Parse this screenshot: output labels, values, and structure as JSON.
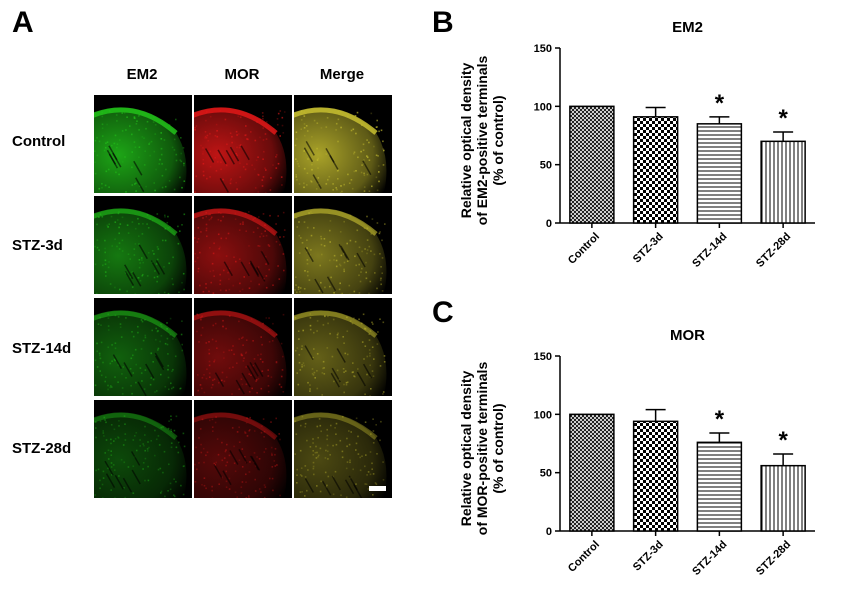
{
  "panels": {
    "A": {
      "letter": "A",
      "columns": [
        "EM2",
        "MOR",
        "Merge"
      ],
      "rows": [
        "Control",
        "STZ-3d",
        "STZ-14d",
        "STZ-28d"
      ]
    },
    "B": {
      "letter": "B"
    },
    "C": {
      "letter": "C"
    }
  },
  "colors": {
    "em2": "#22c21a",
    "mor": "#e01818",
    "merge": "#c8c030",
    "background": "#000000"
  },
  "chart_data": [
    {
      "type": "bar",
      "title": "EM2",
      "ylabel_lines": [
        "Relative optical density",
        "of EM2-positive terminals",
        "(% of control)"
      ],
      "xlabel": "",
      "categories": [
        "Control",
        "STZ-3d",
        "STZ-14d",
        "STZ-28d"
      ],
      "values": [
        100,
        91,
        85,
        70
      ],
      "errors": [
        0,
        8,
        6,
        8
      ],
      "significance": [
        "",
        "",
        "*",
        "*"
      ],
      "patterns": [
        "crosshatch",
        "checker",
        "horizontal",
        "vertical"
      ],
      "ylim": [
        0,
        150
      ],
      "yticks": [
        0,
        50,
        100,
        150
      ],
      "grid": false
    },
    {
      "type": "bar",
      "title": "MOR",
      "ylabel_lines": [
        "Relative optical density",
        "of MOR-positive terminals",
        "(% of control)"
      ],
      "xlabel": "",
      "categories": [
        "Control",
        "STZ-3d",
        "STZ-14d",
        "STZ-28d"
      ],
      "values": [
        100,
        94,
        76,
        56
      ],
      "errors": [
        0,
        10,
        8,
        10
      ],
      "significance": [
        "",
        "",
        "*",
        "*"
      ],
      "patterns": [
        "crosshatch",
        "checker",
        "horizontal",
        "vertical"
      ],
      "ylim": [
        0,
        150
      ],
      "yticks": [
        0,
        50,
        100,
        150
      ],
      "grid": false
    }
  ]
}
